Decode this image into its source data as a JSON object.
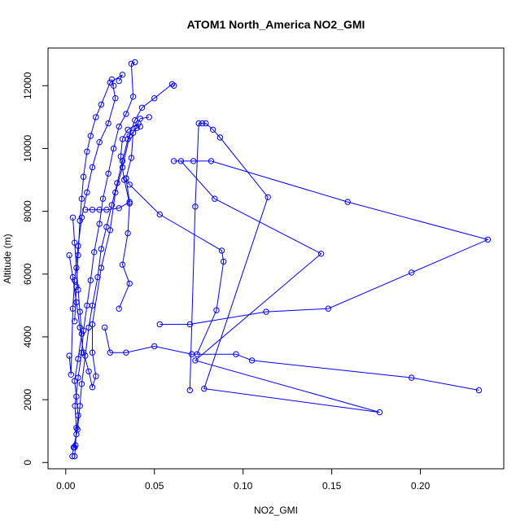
{
  "chart_data": {
    "type": "scatter",
    "title": "ATOM1 North_America NO2_GMI",
    "xlabel": "NO2_GMI",
    "ylabel": "Altitude (m)",
    "xlim": [
      -0.01,
      0.247
    ],
    "ylim": [
      -200,
      13200
    ],
    "x_ticks": [
      "0.00",
      "0.05",
      "0.10",
      "0.15",
      "0.20"
    ],
    "x_tick_values": [
      0,
      0.05,
      0.1,
      0.15,
      0.2
    ],
    "y_ticks": [
      "0",
      "2000",
      "4000",
      "6000",
      "8000",
      "10000",
      "12000"
    ],
    "y_tick_values": [
      0,
      2000,
      4000,
      6000,
      8000,
      10000,
      12000
    ],
    "grid": false,
    "marker": "open-circle",
    "series_color": "#0000ff",
    "series": [
      {
        "values": [
          [
            0.0037,
            200
          ],
          [
            0.0044,
            480
          ],
          [
            0.0066,
            1050
          ],
          [
            0.008,
            1800
          ],
          [
            0.009,
            2500
          ],
          [
            0.011,
            3400
          ],
          [
            0.013,
            4300
          ],
          [
            0.015,
            5000
          ],
          [
            0.018,
            5900
          ],
          [
            0.02,
            6800
          ],
          [
            0.023,
            7500
          ],
          [
            0.026,
            8200
          ],
          [
            0.029,
            8900
          ],
          [
            0.032,
            9600
          ],
          [
            0.035,
            10300
          ],
          [
            0.039,
            10900
          ],
          [
            0.043,
            11300
          ],
          [
            0.05,
            11600
          ],
          [
            0.06,
            12050
          ],
          [
            0.061,
            12000
          ]
        ]
      },
      {
        "values": [
          [
            0.005,
            200
          ],
          [
            0.0055,
            550
          ],
          [
            0.006,
            1100
          ],
          [
            0.0052,
            1800
          ],
          [
            0.007,
            2700
          ],
          [
            0.009,
            3500
          ],
          [
            0.01,
            4200
          ],
          [
            0.012,
            5000
          ],
          [
            0.014,
            5800
          ],
          [
            0.016,
            6700
          ],
          [
            0.019,
            7600
          ],
          [
            0.021,
            8400
          ],
          [
            0.024,
            9200
          ],
          [
            0.027,
            10000
          ],
          [
            0.03,
            10700
          ],
          [
            0.034,
            11100
          ],
          [
            0.038,
            11650
          ],
          [
            0.037,
            12700
          ],
          [
            0.039,
            12750
          ]
        ]
      },
      {
        "values": [
          [
            0.002,
            3400
          ],
          [
            0.003,
            2800
          ],
          [
            0.004,
            4900
          ],
          [
            0.005,
            5800
          ],
          [
            0.007,
            6900
          ],
          [
            0.009,
            7800
          ],
          [
            0.012,
            8600
          ],
          [
            0.015,
            9400
          ],
          [
            0.019,
            10200
          ],
          [
            0.024,
            10800
          ],
          [
            0.028,
            11600
          ],
          [
            0.026,
            12200
          ],
          [
            0.027,
            12000
          ]
        ]
      },
      {
        "values": [
          [
            0.002,
            6600
          ],
          [
            0.004,
            5900
          ],
          [
            0.006,
            5100
          ],
          [
            0.008,
            4300
          ],
          [
            0.01,
            3500
          ],
          [
            0.013,
            2900
          ],
          [
            0.015,
            2400
          ],
          [
            0.017,
            2750
          ],
          [
            0.015,
            3500
          ],
          [
            0.015,
            4400
          ],
          [
            0.02,
            6200
          ],
          [
            0.025,
            7400
          ],
          [
            0.028,
            8600
          ],
          [
            0.032,
            9400
          ],
          [
            0.036,
            10400
          ],
          [
            0.04,
            10650
          ],
          [
            0.042,
            10700
          ]
        ]
      },
      {
        "values": [
          [
            0.005,
            4500
          ],
          [
            0.006,
            5600
          ],
          [
            0.007,
            6600
          ],
          [
            0.008,
            7700
          ],
          [
            0.009,
            8400
          ],
          [
            0.01,
            9100
          ],
          [
            0.012,
            9900
          ],
          [
            0.014,
            10400
          ],
          [
            0.017,
            11000
          ],
          [
            0.02,
            11400
          ],
          [
            0.025,
            12100
          ],
          [
            0.032,
            12350
          ],
          [
            0.03,
            12150
          ]
        ]
      },
      {
        "values": [
          [
            0.004,
            7800
          ],
          [
            0.005,
            7000
          ],
          [
            0.006,
            6200
          ],
          [
            0.007,
            5500
          ],
          [
            0.008,
            4800
          ],
          [
            0.009,
            4100
          ],
          [
            0.007,
            3300
          ],
          [
            0.005,
            2600
          ],
          [
            0.006,
            2100
          ],
          [
            0.007,
            1500
          ],
          [
            0.006,
            900
          ],
          [
            0.005,
            480
          ]
        ]
      },
      {
        "values": [
          [
            0.011,
            8050
          ],
          [
            0.015,
            8050
          ],
          [
            0.019,
            8050
          ],
          [
            0.023,
            8050
          ],
          [
            0.03,
            8100
          ],
          [
            0.036,
            8300
          ],
          [
            0.034,
            9050
          ],
          [
            0.037,
            9700
          ],
          [
            0.038,
            10500
          ],
          [
            0.042,
            10950
          ],
          [
            0.047,
            11000
          ]
        ]
      },
      {
        "values": [
          [
            0.022,
            4300
          ],
          [
            0.025,
            3500
          ],
          [
            0.034,
            3500
          ],
          [
            0.05,
            3700
          ],
          [
            0.071,
            3450
          ],
          [
            0.096,
            3450
          ],
          [
            0.105,
            3250
          ],
          [
            0.195,
            2700
          ],
          [
            0.233,
            2300
          ]
        ]
      },
      {
        "values": [
          [
            0.053,
            4400
          ],
          [
            0.07,
            4400
          ],
          [
            0.113,
            4800
          ],
          [
            0.148,
            4900
          ],
          [
            0.195,
            6050
          ],
          [
            0.238,
            7100
          ],
          [
            0.159,
            8300
          ],
          [
            0.082,
            9600
          ],
          [
            0.072,
            9600
          ],
          [
            0.061,
            9600
          ]
        ]
      },
      {
        "values": [
          [
            0.074,
            3450
          ],
          [
            0.085,
            4850
          ],
          [
            0.089,
            6400
          ],
          [
            0.088,
            6750
          ],
          [
            0.053,
            7900
          ],
          [
            0.036,
            8850
          ],
          [
            0.034,
            9050
          ]
        ]
      },
      {
        "values": [
          [
            0.07,
            2300
          ],
          [
            0.073,
            8150
          ],
          [
            0.075,
            10800
          ],
          [
            0.077,
            10800
          ],
          [
            0.079,
            10800
          ],
          [
            0.083,
            10600
          ],
          [
            0.087,
            10350
          ],
          [
            0.114,
            8450
          ],
          [
            0.078,
            2350
          ],
          [
            0.177,
            1600
          ],
          [
            0.073,
            3250
          ],
          [
            0.144,
            6650
          ],
          [
            0.084,
            8400
          ],
          [
            0.065,
            9600
          ]
        ]
      },
      {
        "values": [
          [
            0.03,
            4900
          ],
          [
            0.036,
            5700
          ],
          [
            0.032,
            6300
          ],
          [
            0.035,
            7300
          ],
          [
            0.036,
            8250
          ],
          [
            0.033,
            9000
          ],
          [
            0.031,
            9750
          ],
          [
            0.032,
            10300
          ],
          [
            0.035,
            10600
          ],
          [
            0.041,
            10800
          ]
        ]
      }
    ]
  }
}
